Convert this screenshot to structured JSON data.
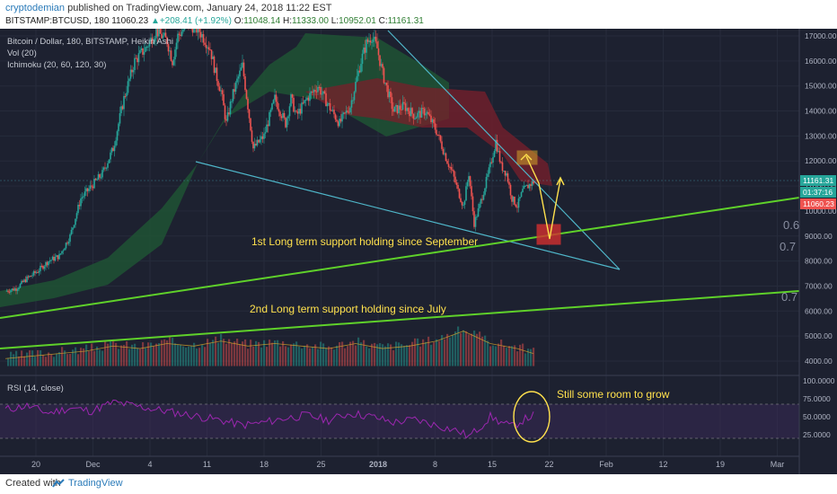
{
  "publish": {
    "author": "cryptodemian",
    "text": "published on TradingView.com, January 24, 2018 11:22 EST"
  },
  "symbol_bar": {
    "symbol": "BITSTAMP:BTCUSD, 180",
    "last": "11060.23",
    "change": "+208.41 (+1.92%)",
    "o_label": "O:",
    "o": "11048.14",
    "h_label": "H:",
    "h": "11333.00",
    "l_label": "L:",
    "l": "10952.01",
    "c_label": "C:",
    "c": "11161.31"
  },
  "legend": {
    "line1": "Bitcoin / Dollar, 180, BITSTAMP, Heikin Ashi",
    "line2": "Vol (20)",
    "line3": "Ichimoku (20, 60, 120, 30)"
  },
  "annotations": {
    "support1": "1st Long term support holding since September",
    "support2": "2nd Long term support holding since July",
    "rsi_note": "Still some room to grow"
  },
  "price_badges": {
    "current": "11161.31",
    "timer": "01:37:16",
    "last": "11060.23",
    "fib1": "0.6",
    "fib2": "0.7",
    "fib3": "0.7"
  },
  "rsi_label": "RSI (14, close)",
  "footer": {
    "created": "Created with",
    "brand": "TradingView"
  },
  "colors": {
    "background": "#1d2130",
    "bull": "#26a69a",
    "bear": "#ef5350",
    "support_line": "#5fd12a",
    "trend_line": "#4fb6c9",
    "annotation_text": "#ffe14d",
    "rsi_line": "#9c27b0"
  },
  "chart_data": {
    "type": "candlestick",
    "price_axis": {
      "ticks": [
        17000,
        16000,
        15000,
        14000,
        13000,
        12000,
        11000,
        10000,
        9000,
        8000,
        7000,
        6000,
        5000,
        4000
      ],
      "tick_labels": [
        "17000.00",
        "16000.00",
        "15000.00",
        "14000.00",
        "13000.00",
        "12000.00",
        "11000.00",
        "10000.00",
        "9000.00",
        "8000.00",
        "7000.00",
        "6000.00",
        "5000.00",
        "4000.00"
      ]
    },
    "rsi_axis": {
      "ticks": [
        100,
        75,
        50,
        25
      ],
      "tick_labels": [
        "100.0000",
        "75.0000",
        "50.0000",
        "25.0000"
      ]
    },
    "time_axis": [
      "20",
      "Dec",
      "4",
      "11",
      "18",
      "25",
      "2018",
      "8",
      "15",
      "22",
      "Feb",
      "12",
      "19",
      "Mar"
    ],
    "price_path": [
      [
        0,
        6800
      ],
      [
        2,
        6900
      ],
      [
        4,
        7300
      ],
      [
        6,
        7600
      ],
      [
        8,
        8000
      ],
      [
        10,
        8200
      ],
      [
        12,
        9000
      ],
      [
        14,
        10500
      ],
      [
        16,
        11000
      ],
      [
        18,
        11500
      ],
      [
        20,
        12500
      ],
      [
        22,
        14500
      ],
      [
        24,
        16000
      ],
      [
        26,
        16500
      ],
      [
        28,
        17200
      ],
      [
        30,
        16800
      ],
      [
        31,
        16000
      ],
      [
        32,
        17000
      ],
      [
        34,
        17500
      ],
      [
        36,
        17200
      ],
      [
        38,
        16500
      ],
      [
        39,
        15500
      ],
      [
        40,
        14800
      ],
      [
        41,
        13500
      ],
      [
        42,
        14500
      ],
      [
        43,
        15200
      ],
      [
        44,
        15800
      ],
      [
        45,
        14200
      ],
      [
        46,
        12500
      ],
      [
        48,
        13000
      ],
      [
        50,
        14500
      ],
      [
        52,
        13500
      ],
      [
        53,
        14500
      ],
      [
        54,
        13800
      ],
      [
        56,
        14500
      ],
      [
        58,
        15000
      ],
      [
        60,
        14200
      ],
      [
        62,
        13500
      ],
      [
        64,
        14200
      ],
      [
        66,
        16000
      ],
      [
        67,
        16700
      ],
      [
        68,
        17000
      ],
      [
        69,
        16500
      ],
      [
        70,
        15500
      ],
      [
        72,
        14000
      ],
      [
        74,
        14200
      ],
      [
        76,
        13800
      ],
      [
        78,
        14000
      ],
      [
        80,
        13200
      ],
      [
        82,
        12000
      ],
      [
        83,
        11500
      ],
      [
        84,
        10800
      ],
      [
        85,
        10200
      ],
      [
        86,
        11500
      ],
      [
        87,
        9500
      ],
      [
        88,
        10200
      ],
      [
        90,
        11800
      ],
      [
        91,
        12800
      ],
      [
        92,
        11800
      ],
      [
        93,
        11500
      ],
      [
        94,
        10500
      ],
      [
        95,
        10200
      ],
      [
        96,
        10800
      ],
      [
        97,
        11000
      ],
      [
        98,
        11161
      ]
    ],
    "volume_path": [
      [
        0,
        4100
      ],
      [
        5,
        4200
      ],
      [
        10,
        4300
      ],
      [
        15,
        4400
      ],
      [
        20,
        4600
      ],
      [
        25,
        4500
      ],
      [
        30,
        4700
      ],
      [
        35,
        4600
      ],
      [
        40,
        4800
      ],
      [
        45,
        4600
      ],
      [
        50,
        4700
      ],
      [
        55,
        4600
      ],
      [
        60,
        4500
      ],
      [
        65,
        4700
      ],
      [
        70,
        4500
      ],
      [
        75,
        4600
      ],
      [
        80,
        4800
      ],
      [
        85,
        5200
      ],
      [
        90,
        4700
      ],
      [
        95,
        4500
      ],
      [
        98,
        4300
      ]
    ],
    "rsi_path": [
      [
        0,
        60
      ],
      [
        4,
        65
      ],
      [
        8,
        55
      ],
      [
        12,
        62
      ],
      [
        16,
        58
      ],
      [
        20,
        70
      ],
      [
        24,
        65
      ],
      [
        28,
        60
      ],
      [
        32,
        55
      ],
      [
        36,
        50
      ],
      [
        40,
        45
      ],
      [
        44,
        38
      ],
      [
        48,
        42
      ],
      [
        52,
        48
      ],
      [
        56,
        52
      ],
      [
        60,
        45
      ],
      [
        64,
        55
      ],
      [
        68,
        50
      ],
      [
        72,
        42
      ],
      [
        76,
        46
      ],
      [
        80,
        38
      ],
      [
        84,
        30
      ],
      [
        86,
        22
      ],
      [
        88,
        35
      ],
      [
        90,
        50
      ],
      [
        92,
        42
      ],
      [
        94,
        36
      ],
      [
        96,
        45
      ],
      [
        98,
        52
      ]
    ],
    "series": [
      {
        "name": "Vol (20)"
      },
      {
        "name": "Ichimoku (20, 60, 120, 30)"
      },
      {
        "name": "RSI (14, close)"
      }
    ]
  }
}
